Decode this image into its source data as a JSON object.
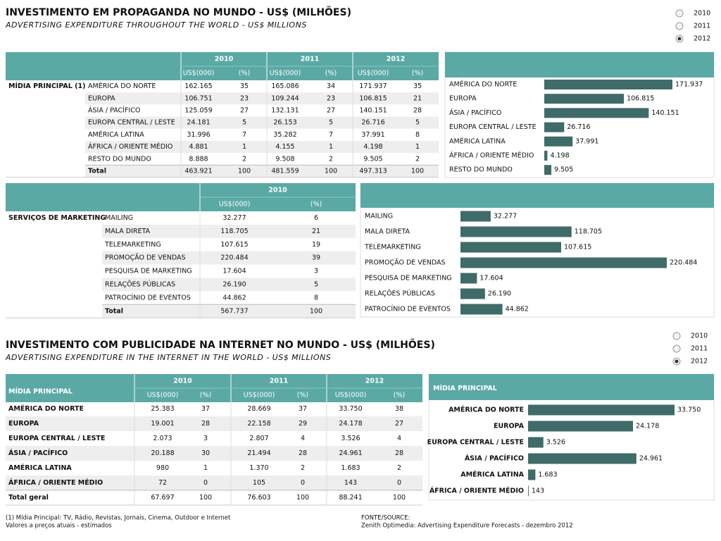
{
  "advertising": {
    "title": "INVESTIMENTO EM PROPAGANDA NO MUNDO - US$ (MILHÕES)",
    "subtitle": "ADVERTISING EXPENDITURE THROUGHOUT THE WORLD - US$ MILLIONS",
    "years": [
      "2010",
      "2011",
      "2012"
    ],
    "col_headers": [
      "US$(000)",
      "(%)"
    ],
    "group_label": "MÍDIA PRINCIPAL (1)",
    "rows": [
      {
        "label": "AMÉRICA DO NORTE",
        "cells": [
          {
            "value": 162165,
            "label": "162.165"
          },
          35,
          {
            "value": 165086,
            "label": "165.086"
          },
          34,
          {
            "value": 171937,
            "label": "171.937"
          },
          35
        ]
      },
      {
        "label": "EUROPA",
        "cells": [
          {
            "value": 106751,
            "label": "106.751"
          },
          23,
          {
            "value": 109244,
            "label": "109.244"
          },
          23,
          {
            "value": 106815,
            "label": "106.815"
          },
          21
        ]
      },
      {
        "label": "ÁSIA / PACÍFICO",
        "cells": [
          {
            "value": 125059,
            "label": "125.059"
          },
          27,
          {
            "value": 132131,
            "label": "132.131"
          },
          27,
          {
            "value": 140151,
            "label": "140.151"
          },
          28
        ]
      },
      {
        "label": "EUROPA CENTRAL / LESTE",
        "cells": [
          {
            "value": 24181,
            "label": "24.181"
          },
          5,
          {
            "value": 26153,
            "label": "26.153"
          },
          5,
          {
            "value": 26716,
            "label": "26.716"
          },
          5
        ]
      },
      {
        "label": "AMÉRICA LATINA",
        "cells": [
          {
            "value": 31996,
            "label": "31.996"
          },
          7,
          {
            "value": 35282,
            "label": "35.282"
          },
          7,
          {
            "value": 37991,
            "label": "37.991"
          },
          8
        ]
      },
      {
        "label": "ÁFRICA / ORIENTE MÉDIO",
        "cells": [
          {
            "value": 4881,
            "label": "4.881"
          },
          1,
          {
            "value": 4155,
            "label": "4.155"
          },
          1,
          {
            "value": 4198,
            "label": "4.198"
          },
          1
        ]
      },
      {
        "label": "RESTO DO MUNDO",
        "cells": [
          {
            "value": 8888,
            "label": "8.888"
          },
          2,
          {
            "value": 9508,
            "label": "9.508"
          },
          2,
          {
            "value": 9505,
            "label": "9.505"
          },
          2
        ]
      }
    ],
    "total": {
      "label": "Total",
      "cells": [
        {
          "value": 463921,
          "label": "463.921"
        },
        100,
        {
          "value": 481559,
          "label": "481.559"
        },
        100,
        {
          "value": 497313,
          "label": "497.313"
        },
        100
      ]
    }
  },
  "marketing": {
    "years": [
      "2010"
    ],
    "col_headers": [
      "US$(000)",
      "(%)"
    ],
    "group_label": "SERVIÇOS DE MARKETING",
    "rows": [
      {
        "label": "MAILING",
        "cells": [
          {
            "value": 32277,
            "label": "32.277"
          },
          6
        ]
      },
      {
        "label": "MALA DIRETA",
        "cells": [
          {
            "value": 118705,
            "label": "118.705"
          },
          21
        ]
      },
      {
        "label": "TELEMARKETING",
        "cells": [
          {
            "value": 107615,
            "label": "107.615"
          },
          19
        ]
      },
      {
        "label": "PROMOÇÃO DE VENDAS",
        "cells": [
          {
            "value": 220484,
            "label": "220.484"
          },
          39
        ]
      },
      {
        "label": "PESQUISA DE MARKETING",
        "cells": [
          {
            "value": 17604,
            "label": "17.604"
          },
          3
        ]
      },
      {
        "label": "RELAÇÕES PÚBLICAS",
        "cells": [
          {
            "value": 26190,
            "label": "26.190"
          },
          5
        ]
      },
      {
        "label": "PATROCÍNIO DE EVENTOS",
        "cells": [
          {
            "value": 44862,
            "label": "44.862"
          },
          8
        ]
      }
    ],
    "total": {
      "label": "Total",
      "cells": [
        {
          "value": 567737,
          "label": "567.737"
        },
        100
      ]
    }
  },
  "internet": {
    "title": "INVESTIMENTO COM PUBLICIDADE NA INTERNET NO MUNDO - US$ (MILHÕES)",
    "subtitle": "ADVERTISING EXPENDITURE IN THE INTERNET IN THE WORLD - US$ MILLIONS",
    "years": [
      "2010",
      "2011",
      "2012"
    ],
    "col_headers": [
      "US$(000)",
      "(%)"
    ],
    "group_label": "MÍDIA PRINCIPAL",
    "chart_title": "MÍDIA PRINCIPAL",
    "rows": [
      {
        "label": "AMÉRICA DO NORTE",
        "cells": [
          {
            "value": 25383,
            "label": "25.383"
          },
          37,
          {
            "value": 28669,
            "label": "28.669"
          },
          37,
          {
            "value": 33750,
            "label": "33.750"
          },
          38
        ]
      },
      {
        "label": "EUROPA",
        "cells": [
          {
            "value": 19001,
            "label": "19.001"
          },
          28,
          {
            "value": 22158,
            "label": "22.158"
          },
          29,
          {
            "value": 24178,
            "label": "24.178"
          },
          27
        ]
      },
      {
        "label": "EUROPA CENTRAL / LESTE",
        "cells": [
          {
            "value": 2073,
            "label": "2.073"
          },
          3,
          {
            "value": 2807,
            "label": "2.807"
          },
          4,
          {
            "value": 3526,
            "label": "3.526"
          },
          4
        ]
      },
      {
        "label": "ÁSIA / PACÍFICO",
        "cells": [
          {
            "value": 20188,
            "label": "20.188"
          },
          30,
          {
            "value": 21494,
            "label": "21.494"
          },
          28,
          {
            "value": 24961,
            "label": "24.961"
          },
          28
        ]
      },
      {
        "label": "AMÉRICA LATINA",
        "cells": [
          980,
          1,
          {
            "value": 1370,
            "label": "1.370"
          },
          2,
          {
            "value": 1683,
            "label": "1.683"
          },
          2
        ]
      },
      {
        "label": "ÁFRICA / ORIENTE MÉDIO",
        "cells": [
          72,
          0,
          105,
          0,
          143,
          0
        ]
      }
    ],
    "total": {
      "label": "Total geral",
      "cells": [
        {
          "value": 67697,
          "label": "67.697"
        },
        100,
        {
          "value": 76603,
          "label": "76.603"
        },
        100,
        {
          "value": 88241,
          "label": "88.241"
        },
        100
      ]
    }
  },
  "footnotes": [
    "(1) Mídia Principal: TV, Rádio, Revistas, Jornais, Cinema, Outdoor e Internet",
    "Valores a preços atuais - estimados"
  ],
  "source": [
    "FONTE/SOURCE:",
    "Zenith Optimedia: Advertising Expenditure Forecasts - dezembro 2012"
  ]
}
